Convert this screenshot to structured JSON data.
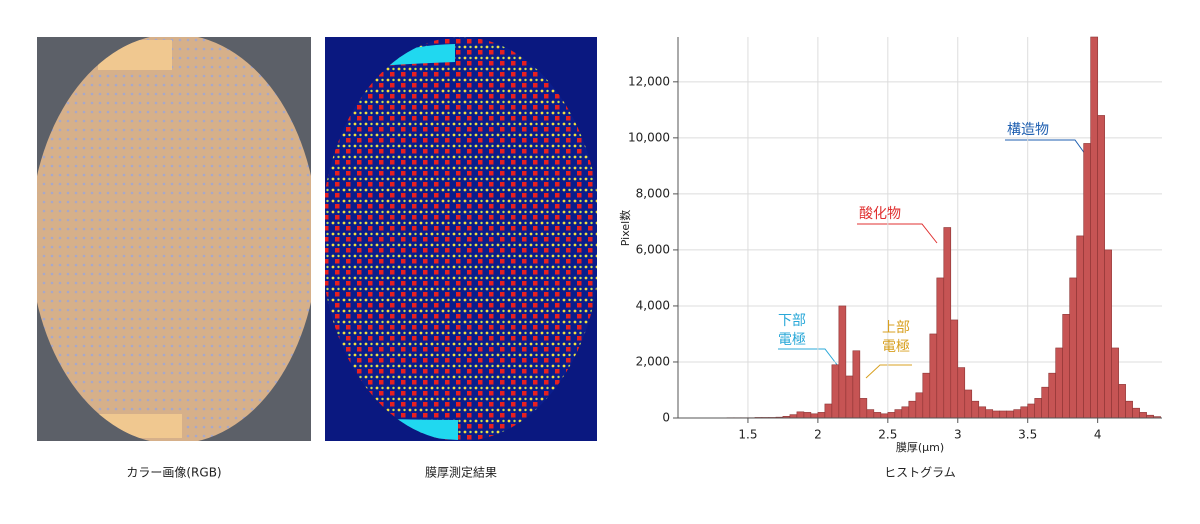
{
  "captions": [
    "カラー画像(RGB)",
    "膜厚測定結果",
    "ヒストグラム"
  ],
  "chart_data": {
    "type": "histogram",
    "xlabel": "膜厚(μm)",
    "ylabel": "Pixel数",
    "color": "#c65454",
    "bins": [
      1.0,
      1.05,
      1.1,
      1.15,
      1.2,
      1.25,
      1.3,
      1.35,
      1.4,
      1.45,
      1.5,
      1.55,
      1.6,
      1.65,
      1.7,
      1.75,
      1.8,
      1.85,
      1.9,
      1.95,
      2.0,
      2.05,
      2.1,
      2.15,
      2.2,
      2.25,
      2.3,
      2.35,
      2.4,
      2.45,
      2.5,
      2.55,
      2.6,
      2.65,
      2.7,
      2.75,
      2.8,
      2.85,
      2.9,
      2.95,
      3.0,
      3.05,
      3.1,
      3.15,
      3.2,
      3.25,
      3.3,
      3.35,
      3.4,
      3.45,
      3.5,
      3.55,
      3.6,
      3.65,
      3.7,
      3.75,
      3.8,
      3.85,
      3.9,
      3.95,
      4.0,
      4.05,
      4.1,
      4.15,
      4.2,
      4.25,
      4.3,
      4.35,
      4.4,
      4.45
    ],
    "counts": [
      0,
      0,
      0,
      0,
      0,
      0,
      0,
      10,
      10,
      10,
      10,
      20,
      20,
      20,
      30,
      60,
      120,
      220,
      200,
      150,
      200,
      500,
      1900,
      4000,
      1500,
      2400,
      700,
      300,
      200,
      150,
      200,
      300,
      400,
      600,
      900,
      1600,
      3000,
      5000,
      6800,
      3500,
      1800,
      1000,
      600,
      400,
      300,
      250,
      250,
      250,
      300,
      400,
      500,
      700,
      1100,
      1600,
      2500,
      3700,
      5000,
      6500,
      9800,
      13600,
      10800,
      6000,
      2500,
      1200,
      600,
      350,
      200,
      100,
      50
    ],
    "xlim": [
      1.0,
      4.46
    ],
    "xticks": [
      1.5,
      2,
      2.5,
      3,
      3.5,
      4
    ],
    "ylim": [
      0,
      13600
    ],
    "yticks": [
      0,
      {
        "value": 2000,
        "label": "2,000"
      },
      {
        "value": 4000,
        "label": "4,000"
      },
      {
        "value": 6000,
        "label": "6,000"
      },
      {
        "value": 8000,
        "label": "8,000"
      },
      {
        "value": 10000,
        "label": "10,000"
      },
      {
        "value": 12000,
        "label": "12,000"
      }
    ],
    "grid": true,
    "annotations": [
      {
        "text": "下部",
        "color": "#2aa8d8"
      },
      {
        "text": "電極",
        "color": "#2aa8d8"
      },
      {
        "text": "上部",
        "color": "#d8a020"
      },
      {
        "text": "電極",
        "color": "#d8a020"
      },
      {
        "text": "酸化物",
        "color": "#e03030"
      },
      {
        "text": "構造物",
        "color": "#1f5fb0"
      }
    ]
  }
}
